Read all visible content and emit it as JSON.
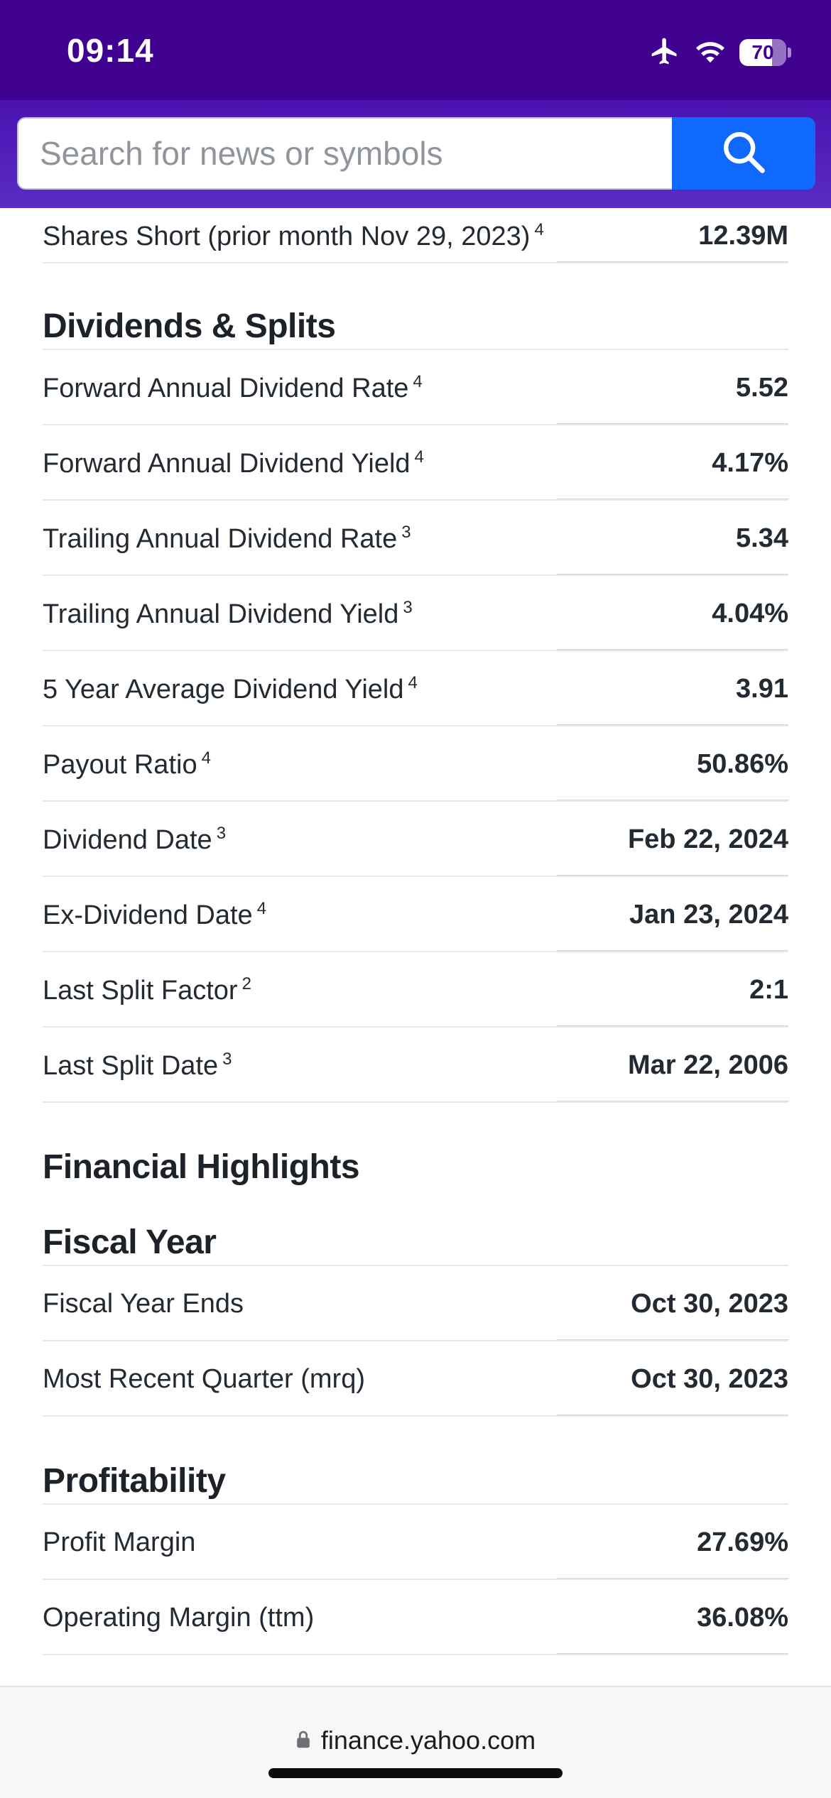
{
  "status_bar": {
    "time": "09:14",
    "battery": "70",
    "battery_level": 0.7
  },
  "search": {
    "placeholder": "Search for news or symbols"
  },
  "top_row": {
    "label": "Shares Short (prior month Nov 29, 2023)",
    "sup": "4",
    "value": "12.39M"
  },
  "dividends": {
    "title": "Dividends & Splits",
    "rows": [
      {
        "label": "Forward Annual Dividend Rate",
        "sup": "4",
        "value": "5.52"
      },
      {
        "label": "Forward Annual Dividend Yield",
        "sup": "4",
        "value": "4.17%"
      },
      {
        "label": "Trailing Annual Dividend Rate",
        "sup": "3",
        "value": "5.34"
      },
      {
        "label": "Trailing Annual Dividend Yield",
        "sup": "3",
        "value": "4.04%"
      },
      {
        "label": "5 Year Average Dividend Yield",
        "sup": "4",
        "value": "3.91"
      },
      {
        "label": "Payout Ratio",
        "sup": "4",
        "value": "50.86%"
      },
      {
        "label": "Dividend Date",
        "sup": "3",
        "value": "Feb 22, 2024"
      },
      {
        "label": "Ex-Dividend Date",
        "sup": "4",
        "value": "Jan 23, 2024"
      },
      {
        "label": "Last Split Factor",
        "sup": "2",
        "value": "2:1"
      },
      {
        "label": "Last Split Date",
        "sup": "3",
        "value": "Mar 22, 2006"
      }
    ]
  },
  "financial_highlights": {
    "title": "Financial Highlights"
  },
  "fiscal_year": {
    "title": "Fiscal Year",
    "rows": [
      {
        "label": "Fiscal Year Ends",
        "value": "Oct 30, 2023"
      },
      {
        "label": "Most Recent Quarter (mrq)",
        "value": "Oct 30, 2023"
      }
    ]
  },
  "profitability": {
    "title": "Profitability",
    "rows": [
      {
        "label": "Profit Margin",
        "value": "27.69%"
      },
      {
        "label": "Operating Margin (ttm)",
        "value": "36.08%"
      }
    ]
  },
  "browser": {
    "url": "finance.yahoo.com"
  },
  "colors": {
    "status_bar": "#400090",
    "search_header": "#4a12b0",
    "search_button": "#0f69ff",
    "text": "#232a31"
  }
}
